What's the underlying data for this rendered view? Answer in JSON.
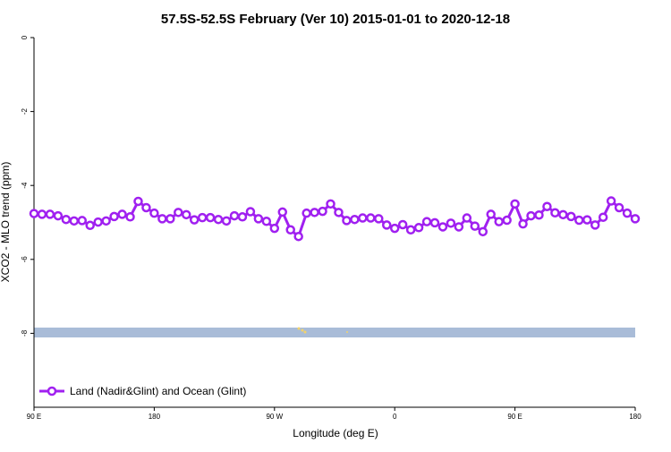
{
  "chart_data": {
    "type": "line",
    "title": "57.5S-52.5S February (Ver 10)   2015-01-01 to 2020-12-18",
    "xlabel": "Longitude (deg E)",
    "ylabel": "XCO2 - MLO trend (ppm)",
    "x": [
      90,
      96,
      102,
      108,
      114,
      120,
      126,
      132,
      138,
      144,
      150,
      156,
      162,
      168,
      174,
      180,
      186,
      192,
      198,
      204,
      210,
      216,
      222,
      228,
      234,
      240,
      246,
      252,
      258,
      264,
      270,
      276,
      282,
      288,
      294,
      300,
      306,
      312,
      318,
      324,
      330,
      336,
      342,
      348,
      354,
      360,
      366,
      372,
      378,
      384,
      390,
      396,
      402,
      408,
      414,
      420,
      426,
      432,
      438,
      444,
      450,
      456,
      462,
      468,
      474,
      480,
      486,
      492,
      498,
      504,
      510,
      516,
      522,
      528,
      534,
      540
    ],
    "series": [
      {
        "name": "Land (Nadir&Glint) and Ocean (Glint)",
        "color": "#a020f0",
        "values": [
          -4.76,
          -4.78,
          -4.78,
          -4.82,
          -4.92,
          -4.96,
          -4.95,
          -5.08,
          -4.99,
          -4.96,
          -4.84,
          -4.78,
          -4.85,
          -4.43,
          -4.6,
          -4.75,
          -4.9,
          -4.9,
          -4.73,
          -4.79,
          -4.93,
          -4.87,
          -4.87,
          -4.92,
          -4.96,
          -4.82,
          -4.85,
          -4.71,
          -4.9,
          -4.97,
          -5.16,
          -4.72,
          -5.2,
          -5.38,
          -4.75,
          -4.73,
          -4.7,
          -4.5,
          -4.73,
          -4.95,
          -4.92,
          -4.88,
          -4.88,
          -4.9,
          -5.07,
          -5.16,
          -5.06,
          -5.2,
          -5.14,
          -4.98,
          -5.01,
          -5.12,
          -5.02,
          -5.12,
          -4.88,
          -5.1,
          -5.25,
          -4.78,
          -4.98,
          -4.94,
          -4.5,
          -5.04,
          -4.82,
          -4.8,
          -4.57,
          -4.74,
          -4.79,
          -4.84,
          -4.94,
          -4.93,
          -5.07,
          -4.86,
          -4.42,
          -4.6,
          -4.75,
          -4.9
        ]
      }
    ],
    "xlim": [
      90,
      540
    ],
    "xticks": [
      {
        "value": 90,
        "label": "90 E"
      },
      180,
      {
        "value": 270,
        "label": "90 W"
      },
      {
        "value": 360,
        "label": "0"
      },
      {
        "value": 450,
        "label": "90 E"
      },
      {
        "value": 540,
        "label": "180"
      }
    ],
    "ylim": [
      -10,
      0
    ],
    "yticks": [
      0,
      -2,
      -4,
      -6,
      -8
    ],
    "legend": "bottom-left"
  }
}
